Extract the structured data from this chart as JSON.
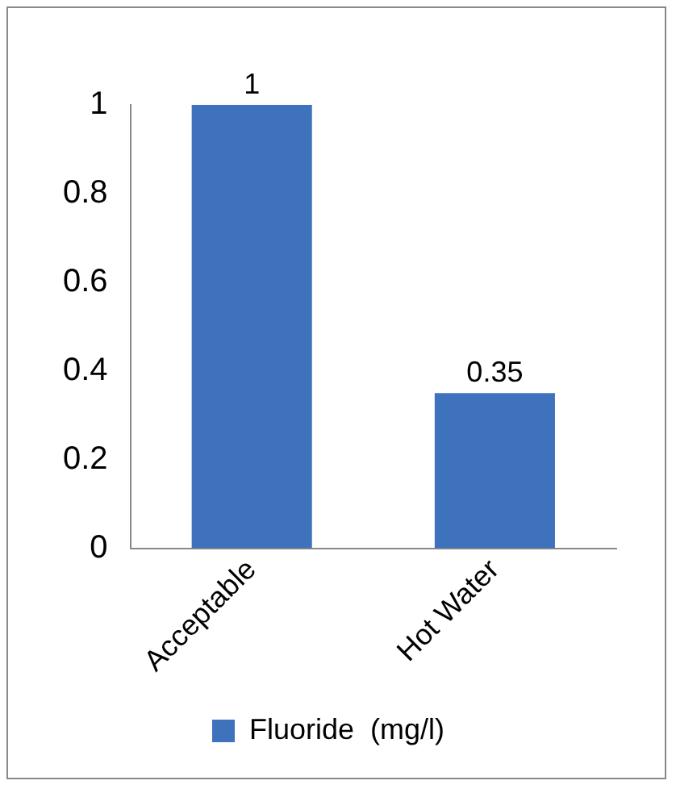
{
  "chart_data": {
    "type": "bar",
    "categories": [
      "Acceptable",
      "Hot Water"
    ],
    "series": [
      {
        "name": "Fluoride  (mg/l)",
        "color": "#3f72bd",
        "values": [
          1,
          0.35
        ]
      }
    ],
    "ylim": [
      0,
      1
    ],
    "yticks": [
      0,
      0.2,
      0.4,
      0.6,
      0.8,
      1
    ],
    "grid": false,
    "legend": "bottom",
    "data_labels": true
  }
}
